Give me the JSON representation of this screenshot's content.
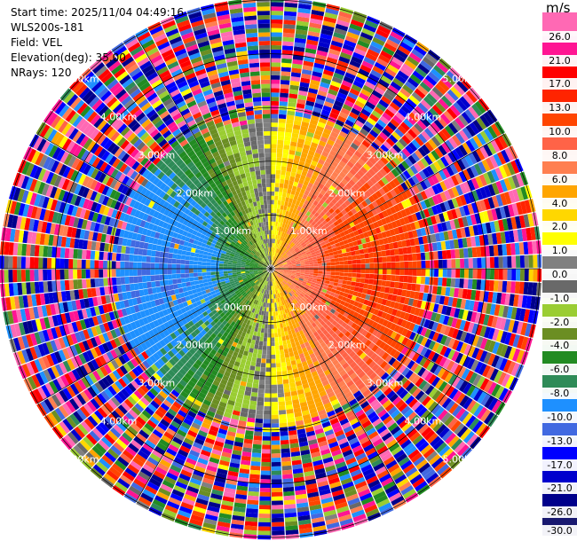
{
  "info": {
    "start_time": "Start time: 2025/11/04 04:49:16",
    "instrument": "WLS200s-181",
    "field": "Field: VEL",
    "elevation": "Elevation(deg): 35.00",
    "nrays": "NRays: 120"
  },
  "colorbar": {
    "unit": "m/s",
    "ticks": [
      "26.0",
      "21.0",
      "17.0",
      "13.0",
      "10.0",
      "8.0",
      "6.0",
      "4.0",
      "2.0",
      "1.0",
      "0.0",
      "-1.0",
      "-2.0",
      "-4.0",
      "-6.0",
      "-8.0",
      "-10.0",
      "-13.0",
      "-17.0",
      "-21.0",
      "-26.0",
      "-30.0"
    ],
    "colors": [
      "#ff69b4",
      "#ff1493",
      "#ff0000",
      "#ff2400",
      "#ff4500",
      "#ff6347",
      "#ff7f50",
      "#ffa500",
      "#ffd700",
      "#ffff00",
      "#808080",
      "#696969",
      "#9acd32",
      "#6b8e23",
      "#228b22",
      "#2e8b57",
      "#1e90ff",
      "#4169e1",
      "#0000ff",
      "#0000cd",
      "#00008b",
      "#191970"
    ]
  },
  "chart_data": {
    "type": "heatmap",
    "title": "",
    "field": "VEL",
    "units": "m/s",
    "elevation_deg": 35.0,
    "n_rays": 120,
    "range_rings_km": [
      1.0,
      2.0,
      3.0,
      4.0,
      5.0
    ],
    "range_ring_labels": [
      "1.00km",
      "2.00km",
      "3.00km",
      "4.00km",
      "5.00km"
    ],
    "max_range_km": 5.0,
    "noisy_beyond_km": 2.9,
    "pattern": "radial velocity dipole: positive (receding, orange/red) to the east, negative (approaching, blue) to the west, near-zero (yellow/green) in a north-south band; outer ranges noisy",
    "approx_peak_east_ms": 10.0,
    "approx_peak_west_ms": -13.0
  }
}
